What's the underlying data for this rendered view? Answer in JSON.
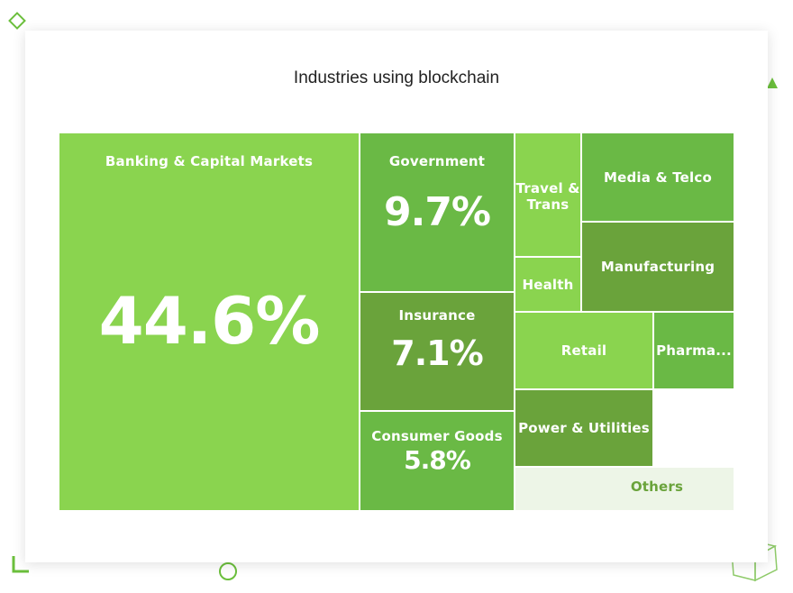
{
  "colors": {
    "light": "#8ad44f",
    "mid": "#6ab945",
    "dark": "#6aa33b",
    "pale": "#edf5e7",
    "accent": "#6bbf3c",
    "others_text": "#6aa33b"
  },
  "decorations": [
    "diamond-icon",
    "triangle-icon",
    "square-corner-icon",
    "circle-icon",
    "cube-icon"
  ],
  "chart_data": {
    "type": "treemap",
    "title": "Industries using blockchain",
    "items": [
      {
        "name": "Banking & Capital Markets",
        "value_label": "44.6%",
        "value": 44.6
      },
      {
        "name": "Government",
        "value_label": "9.7%",
        "value": 9.7
      },
      {
        "name": "Insurance",
        "value_label": "7.1%",
        "value": 7.1
      },
      {
        "name": "Consumer Goods",
        "value_label": "5.8%",
        "value": 5.8
      },
      {
        "name": "Travel &\nTrans",
        "value_label": "",
        "value": null
      },
      {
        "name": "Media & Telco",
        "value_label": "",
        "value": null
      },
      {
        "name": "Health",
        "value_label": "",
        "value": null
      },
      {
        "name": "Manufacturing",
        "value_label": "",
        "value": null
      },
      {
        "name": "Retail",
        "value_label": "",
        "value": null
      },
      {
        "name": "Pharma...",
        "value_label": "",
        "value": null
      },
      {
        "name": "Power & Utilities",
        "value_label": "",
        "value": null
      },
      {
        "name": "Others",
        "value_label": "",
        "value": null
      }
    ]
  }
}
